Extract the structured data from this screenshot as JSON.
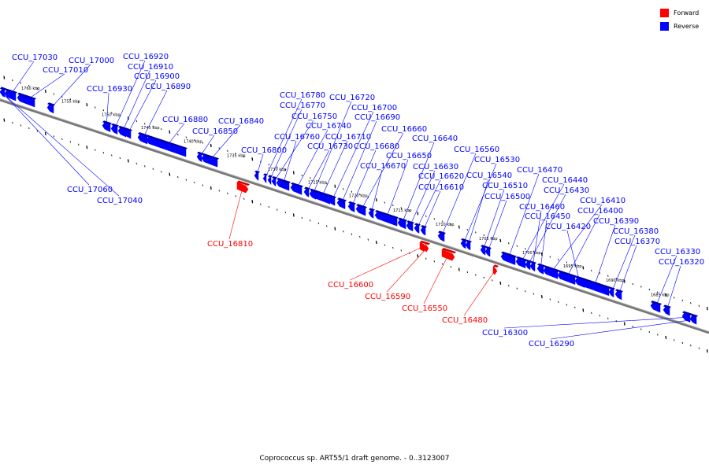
{
  "legend": {
    "forward_label": "Forward",
    "forward_color": "#ff0000",
    "reverse_label": "Reverse",
    "reverse_color": "#0000ff"
  },
  "caption": "Coprococcus sp. ART55/1 draft genome. - 0..3123007",
  "scale_labels": [
    "1760 kbp",
    "1755 kbp",
    "1750 kbp",
    "1745 kbp",
    "1740 kbp",
    "1735 kbp",
    "1730 kbp",
    "1725 kbp",
    "1720 kbp",
    "1715 kbp",
    "1710 kbp",
    "1705 kbp",
    "1700 kbp",
    "1695 kbp",
    "1690 kbp",
    "1685 kbp"
  ],
  "genes": [
    {
      "name": "CCU_17030",
      "strand": "reverse"
    },
    {
      "name": "CCU_17010",
      "strand": "reverse"
    },
    {
      "name": "CCU_17000",
      "strand": "reverse"
    },
    {
      "name": "CCU_16930",
      "strand": "reverse"
    },
    {
      "name": "CCU_16920",
      "strand": "reverse"
    },
    {
      "name": "CCU_16910",
      "strand": "reverse"
    },
    {
      "name": "CCU_16900",
      "strand": "reverse"
    },
    {
      "name": "CCU_16890",
      "strand": "reverse"
    },
    {
      "name": "CCU_16880",
      "strand": "reverse"
    },
    {
      "name": "CCU_16850",
      "strand": "reverse"
    },
    {
      "name": "CCU_16840",
      "strand": "reverse"
    },
    {
      "name": "CCU_16800",
      "strand": "reverse"
    },
    {
      "name": "CCU_16780",
      "strand": "reverse"
    },
    {
      "name": "CCU_16770",
      "strand": "reverse"
    },
    {
      "name": "CCU_16750",
      "strand": "reverse"
    },
    {
      "name": "CCU_16760",
      "strand": "reverse"
    },
    {
      "name": "CCU_16740",
      "strand": "reverse"
    },
    {
      "name": "CCU_16730",
      "strand": "reverse"
    },
    {
      "name": "CCU_16720",
      "strand": "reverse"
    },
    {
      "name": "CCU_16710",
      "strand": "reverse"
    },
    {
      "name": "CCU_16700",
      "strand": "reverse"
    },
    {
      "name": "CCU_16690",
      "strand": "reverse"
    },
    {
      "name": "CCU_16680",
      "strand": "reverse"
    },
    {
      "name": "CCU_16660",
      "strand": "reverse"
    },
    {
      "name": "CCU_16670",
      "strand": "reverse"
    },
    {
      "name": "CCU_16650",
      "strand": "reverse"
    },
    {
      "name": "CCU_16640",
      "strand": "reverse"
    },
    {
      "name": "CCU_16630",
      "strand": "reverse"
    },
    {
      "name": "CCU_16620",
      "strand": "reverse"
    },
    {
      "name": "CCU_16610",
      "strand": "reverse"
    },
    {
      "name": "CCU_16560",
      "strand": "reverse"
    },
    {
      "name": "CCU_16530",
      "strand": "reverse"
    },
    {
      "name": "CCU_16540",
      "strand": "reverse"
    },
    {
      "name": "CCU_16510",
      "strand": "reverse"
    },
    {
      "name": "CCU_16500",
      "strand": "reverse"
    },
    {
      "name": "CCU_16470",
      "strand": "reverse"
    },
    {
      "name": "CCU_16440",
      "strand": "reverse"
    },
    {
      "name": "CCU_16430",
      "strand": "reverse"
    },
    {
      "name": "CCU_16460",
      "strand": "reverse"
    },
    {
      "name": "CCU_16450",
      "strand": "reverse"
    },
    {
      "name": "CCU_16410",
      "strand": "reverse"
    },
    {
      "name": "CCU_16400",
      "strand": "reverse"
    },
    {
      "name": "CCU_16420",
      "strand": "reverse"
    },
    {
      "name": "CCU_16390",
      "strand": "reverse"
    },
    {
      "name": "CCU_16380",
      "strand": "reverse"
    },
    {
      "name": "CCU_16370",
      "strand": "reverse"
    },
    {
      "name": "CCU_16330",
      "strand": "reverse"
    },
    {
      "name": "CCU_16320",
      "strand": "reverse"
    },
    {
      "name": "CCU_17060",
      "strand": "reverse"
    },
    {
      "name": "CCU_17040",
      "strand": "reverse"
    },
    {
      "name": "CCU_16300",
      "strand": "reverse"
    },
    {
      "name": "CCU_16290",
      "strand": "reverse"
    },
    {
      "name": "CCU_16810",
      "strand": "forward"
    },
    {
      "name": "CCU_16600",
      "strand": "forward"
    },
    {
      "name": "CCU_16590",
      "strand": "forward"
    },
    {
      "name": "CCU_16550",
      "strand": "forward"
    },
    {
      "name": "CCU_16480",
      "strand": "forward"
    }
  ]
}
